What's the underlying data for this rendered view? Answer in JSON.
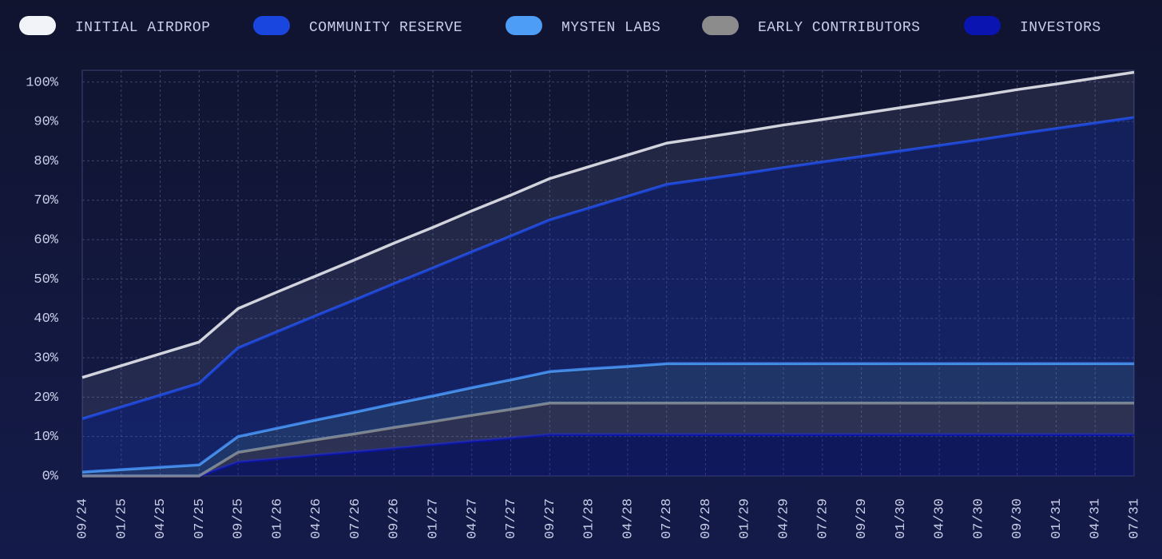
{
  "chart_data": {
    "type": "stacked_area",
    "categories": [
      "09/24",
      "01/25",
      "04/25",
      "07/25",
      "09/25",
      "01/26",
      "04/26",
      "07/26",
      "09/26",
      "01/27",
      "04/27",
      "07/27",
      "09/27",
      "01/28",
      "04/28",
      "07/28",
      "09/28",
      "01/29",
      "04/29",
      "07/29",
      "09/29",
      "01/30",
      "04/30",
      "07/30",
      "09/30",
      "01/31",
      "04/31",
      "07/31"
    ],
    "series": [
      {
        "name": "INVESTORS",
        "color": "#0a14b0",
        "values": [
          0,
          0,
          0,
          0,
          3.5,
          4.4,
          5.3,
          6.1,
          7,
          7.9,
          8.8,
          9.6,
          10.5,
          10.5,
          10.5,
          10.5,
          10.5,
          10.5,
          10.5,
          10.5,
          10.5,
          10.5,
          10.5,
          10.5,
          10.5,
          10.5,
          10.5,
          10.5
        ]
      },
      {
        "name": "EARLY CONTRIBUTORS",
        "color": "#8c8c8c",
        "values": [
          0,
          0,
          0,
          0,
          2.5,
          3.2,
          3.9,
          4.6,
          5.3,
          5.9,
          6.6,
          7.3,
          8,
          8,
          8,
          8,
          8,
          8,
          8,
          8,
          8,
          8,
          8,
          8,
          8,
          8,
          8,
          8
        ]
      },
      {
        "name": "MYSTEN LABS",
        "color": "#4d9cf5",
        "values": [
          1,
          1.6,
          2.2,
          2.8,
          4,
          4.5,
          5,
          5.5,
          6,
          6.5,
          7,
          7.5,
          8,
          8.7,
          9.3,
          10,
          10,
          10,
          10,
          10,
          10,
          10,
          10,
          10,
          10,
          10,
          10,
          10
        ]
      },
      {
        "name": "COMMUNITY RESERVE",
        "color": "#1a46e0",
        "values": [
          13.5,
          15.9,
          18.3,
          20.7,
          22.5,
          24.5,
          26.5,
          28.5,
          30.5,
          32.5,
          34.5,
          36.5,
          38.5,
          40.8,
          43.2,
          45.5,
          46.9,
          48.3,
          49.8,
          51.2,
          52.6,
          54,
          55.4,
          56.8,
          58.3,
          59.7,
          61.1,
          62.5
        ]
      },
      {
        "name": "INITIAL AIRDROP",
        "color": "#f2f3f8",
        "values": [
          10.5,
          10.5,
          10.5,
          10.5,
          10,
          10.1,
          10.1,
          10.2,
          10.3,
          10.3,
          10.4,
          10.4,
          10.5,
          10.5,
          10.5,
          10.5,
          10.6,
          10.7,
          10.8,
          10.8,
          10.9,
          11,
          11.1,
          11.2,
          11.3,
          11.3,
          11.4,
          11.5
        ]
      }
    ],
    "legend_order": [
      "INITIAL AIRDROP",
      "COMMUNITY RESERVE",
      "MYSTEN LABS",
      "EARLY CONTRIBUTORS",
      "INVESTORS"
    ],
    "ylim": [
      0,
      103
    ],
    "yticks": [
      {
        "value": 0,
        "label": "0%"
      },
      {
        "value": 10,
        "label": "10%"
      },
      {
        "value": 20,
        "label": "20%"
      },
      {
        "value": 30,
        "label": "30%"
      },
      {
        "value": 40,
        "label": "40%"
      },
      {
        "value": 50,
        "label": "50%"
      },
      {
        "value": 60,
        "label": "60%"
      },
      {
        "value": 70,
        "label": "70%"
      },
      {
        "value": 80,
        "label": "80%"
      },
      {
        "value": 90,
        "label": "90%"
      },
      {
        "value": 100,
        "label": "100%"
      }
    ],
    "grid": true,
    "legend": "top"
  }
}
